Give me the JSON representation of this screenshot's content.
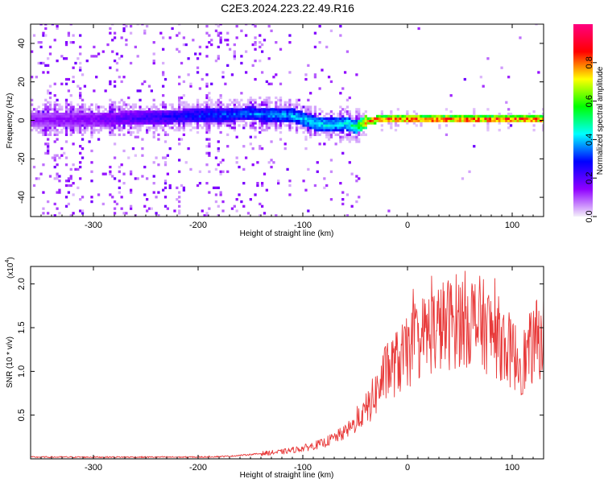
{
  "title": "C2E3.2024.223.22.49.R16",
  "chart_data": [
    {
      "type": "heatmap",
      "xlabel": "Height of straight line (km)",
      "ylabel": "Frequency (Hz)",
      "xlim": [
        -360,
        130
      ],
      "ylim": [
        -50,
        50
      ],
      "xticks": [
        -300,
        -200,
        -100,
        0,
        100
      ],
      "yticks": [
        -40,
        -20,
        0,
        20,
        40
      ],
      "colorbar": {
        "label": "Normalized spectral amplitude",
        "range": [
          0,
          1
        ],
        "ticks": [
          "0.0",
          "0.2",
          "0.4",
          "0.6",
          "0.8"
        ],
        "colormap": [
          "#f4f0fa",
          "#8f00ff",
          "#0000ff",
          "#00ffff",
          "#00ff00",
          "#ffff00",
          "#ff0000",
          "#ff0080"
        ]
      },
      "ridge": {
        "description_points_x": [
          -360,
          -300,
          -200,
          -150,
          -110,
          -90,
          -75,
          -60,
          -50,
          -40,
          -30,
          0,
          50,
          130
        ],
        "center_freq_hz": [
          0,
          0,
          2,
          3,
          2,
          -2,
          -3,
          -2,
          -4,
          -1,
          0,
          0,
          0,
          0
        ],
        "peak_amplitude": [
          0.15,
          0.18,
          0.35,
          0.4,
          0.45,
          0.5,
          0.48,
          0.5,
          0.6,
          0.95,
          1.0,
          1.0,
          1.0,
          1.0
        ]
      }
    },
    {
      "type": "line",
      "xlabel": "Height of straight line (km)",
      "ylabel": "SNR (10 * v/v)",
      "yscale_label": "(x10",
      "yscale_exp": "4",
      "xlim": [
        -360,
        130
      ],
      "ylim": [
        0,
        2.2
      ],
      "xticks": [
        -300,
        -200,
        -100,
        0,
        100
      ],
      "yticks": [
        0.5,
        1.0,
        1.5,
        2.0
      ],
      "line_color": "#e83a3a",
      "series": [
        {
          "x": [
            -360,
            -300,
            -250,
            -200,
            -170,
            -150,
            -120,
            -100,
            -80,
            -60,
            -50,
            -40,
            -30,
            -20,
            -10,
            0,
            10,
            20,
            30,
            40,
            50,
            60,
            70,
            80,
            90,
            100,
            110,
            120,
            130
          ],
          "values": [
            0.02,
            0.02,
            0.02,
            0.02,
            0.03,
            0.05,
            0.08,
            0.12,
            0.18,
            0.3,
            0.4,
            0.55,
            0.75,
            1.0,
            1.1,
            1.2,
            1.35,
            1.45,
            1.5,
            1.55,
            1.6,
            1.6,
            1.55,
            1.45,
            1.35,
            1.2,
            1.1,
            1.3,
            1.45
          ]
        }
      ]
    }
  ]
}
